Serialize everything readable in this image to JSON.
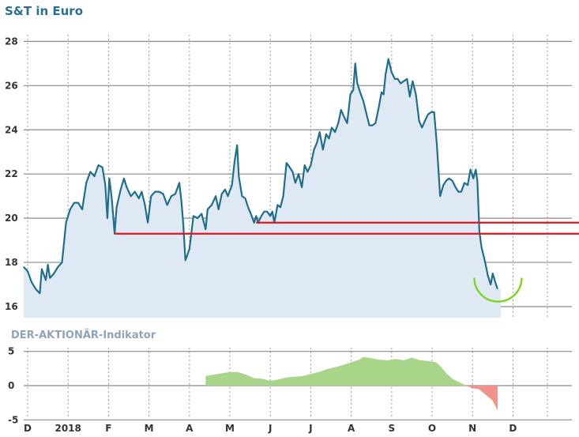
{
  "colors": {
    "title": "#2a6f8f",
    "subtitle": "#8fa3b8",
    "price_line": "#1f6e8c",
    "price_fill": "#dfe9f3",
    "support_line": "#e0161f",
    "arc": "#7ed321",
    "indicator_pos": "#a8d58a",
    "indicator_neg": "#f2928b",
    "grid": "#8a8a8a"
  },
  "chart_data": [
    {
      "type": "area",
      "title": "S&T in Euro",
      "xlabel": "",
      "ylabel": "",
      "ylim": [
        15.5,
        28.8
      ],
      "yticks": [
        16,
        18,
        20,
        22,
        24,
        26,
        28
      ],
      "xlim": [
        0,
        13
      ],
      "xticks": [
        {
          "x": 0,
          "label": "D"
        },
        {
          "x": 1,
          "label": "2018"
        },
        {
          "x": 2,
          "label": "F"
        },
        {
          "x": 3,
          "label": "M"
        },
        {
          "x": 4,
          "label": "A"
        },
        {
          "x": 5,
          "label": "M"
        },
        {
          "x": 6,
          "label": "J"
        },
        {
          "x": 7,
          "label": "J"
        },
        {
          "x": 8,
          "label": "A"
        },
        {
          "x": 9,
          "label": "S"
        },
        {
          "x": 10,
          "label": "O"
        },
        {
          "x": 11,
          "label": "N"
        },
        {
          "x": 12,
          "label": "D"
        }
      ],
      "x_end": 11.7,
      "grid": true,
      "series": [
        {
          "points": [
            [
              -0.1,
              17.8
            ],
            [
              0.0,
              17.6
            ],
            [
              0.1,
              17.1
            ],
            [
              0.2,
              16.8
            ],
            [
              0.3,
              16.6
            ],
            [
              0.35,
              17.7
            ],
            [
              0.45,
              17.2
            ],
            [
              0.5,
              17.9
            ],
            [
              0.55,
              17.3
            ],
            [
              0.65,
              17.5
            ],
            [
              0.75,
              17.8
            ],
            [
              0.85,
              18.0
            ],
            [
              0.95,
              19.8
            ],
            [
              1.05,
              20.4
            ],
            [
              1.15,
              20.7
            ],
            [
              1.25,
              20.7
            ],
            [
              1.35,
              20.4
            ],
            [
              1.45,
              21.6
            ],
            [
              1.55,
              22.1
            ],
            [
              1.65,
              21.9
            ],
            [
              1.75,
              22.4
            ],
            [
              1.85,
              22.3
            ],
            [
              1.92,
              21.5
            ],
            [
              1.97,
              20.0
            ],
            [
              2.02,
              21.8
            ],
            [
              2.08,
              20.9
            ],
            [
              2.15,
              19.3
            ],
            [
              2.2,
              20.5
            ],
            [
              2.3,
              21.3
            ],
            [
              2.38,
              21.8
            ],
            [
              2.45,
              21.4
            ],
            [
              2.55,
              21.0
            ],
            [
              2.65,
              21.2
            ],
            [
              2.75,
              20.9
            ],
            [
              2.82,
              21.2
            ],
            [
              2.9,
              20.6
            ],
            [
              2.97,
              19.8
            ],
            [
              3.05,
              21.0
            ],
            [
              3.15,
              21.2
            ],
            [
              3.25,
              21.2
            ],
            [
              3.35,
              21.1
            ],
            [
              3.45,
              20.6
            ],
            [
              3.55,
              21.0
            ],
            [
              3.65,
              21.1
            ],
            [
              3.75,
              21.6
            ],
            [
              3.8,
              20.8
            ],
            [
              3.85,
              19.7
            ],
            [
              3.9,
              18.1
            ],
            [
              4.0,
              18.6
            ],
            [
              4.1,
              20.1
            ],
            [
              4.2,
              20.0
            ],
            [
              4.3,
              20.2
            ],
            [
              4.4,
              19.5
            ],
            [
              4.45,
              20.4
            ],
            [
              4.55,
              20.6
            ],
            [
              4.65,
              21.0
            ],
            [
              4.72,
              20.4
            ],
            [
              4.8,
              21.1
            ],
            [
              4.88,
              21.3
            ],
            [
              4.95,
              21.0
            ],
            [
              5.05,
              21.5
            ],
            [
              5.12,
              22.6
            ],
            [
              5.18,
              23.3
            ],
            [
              5.22,
              21.9
            ],
            [
              5.3,
              21.0
            ],
            [
              5.38,
              20.9
            ],
            [
              5.45,
              20.5
            ],
            [
              5.52,
              20.2
            ],
            [
              5.6,
              19.8
            ],
            [
              5.65,
              20.1
            ],
            [
              5.7,
              19.8
            ],
            [
              5.78,
              20.1
            ],
            [
              5.85,
              20.3
            ],
            [
              5.92,
              20.3
            ],
            [
              6.0,
              20.1
            ],
            [
              6.05,
              20.3
            ],
            [
              6.1,
              19.8
            ],
            [
              6.18,
              20.6
            ],
            [
              6.25,
              20.5
            ],
            [
              6.32,
              21.0
            ],
            [
              6.4,
              22.5
            ],
            [
              6.48,
              22.3
            ],
            [
              6.55,
              22.1
            ],
            [
              6.62,
              21.6
            ],
            [
              6.7,
              22.0
            ],
            [
              6.78,
              21.4
            ],
            [
              6.85,
              22.4
            ],
            [
              6.92,
              22.1
            ],
            [
              7.0,
              22.4
            ],
            [
              7.08,
              23.1
            ],
            [
              7.15,
              23.4
            ],
            [
              7.22,
              23.9
            ],
            [
              7.3,
              23.1
            ],
            [
              7.38,
              23.8
            ],
            [
              7.45,
              23.6
            ],
            [
              7.52,
              24.1
            ],
            [
              7.6,
              23.9
            ],
            [
              7.68,
              24.3
            ],
            [
              7.75,
              24.9
            ],
            [
              7.82,
              24.6
            ],
            [
              7.9,
              24.3
            ],
            [
              7.98,
              25.6
            ],
            [
              8.05,
              25.8
            ],
            [
              8.1,
              27.0
            ],
            [
              8.15,
              26.1
            ],
            [
              8.22,
              25.7
            ],
            [
              8.3,
              25.3
            ],
            [
              8.38,
              24.7
            ],
            [
              8.45,
              24.2
            ],
            [
              8.52,
              24.2
            ],
            [
              8.6,
              24.3
            ],
            [
              8.68,
              25.0
            ],
            [
              8.75,
              25.7
            ],
            [
              8.8,
              25.6
            ],
            [
              8.85,
              26.5
            ],
            [
              8.92,
              27.2
            ],
            [
              9.0,
              26.6
            ],
            [
              9.08,
              26.3
            ],
            [
              9.15,
              26.3
            ],
            [
              9.22,
              26.1
            ],
            [
              9.3,
              26.2
            ],
            [
              9.38,
              26.3
            ],
            [
              9.45,
              25.5
            ],
            [
              9.52,
              26.2
            ],
            [
              9.6,
              25.6
            ],
            [
              9.68,
              24.4
            ],
            [
              9.75,
              24.1
            ],
            [
              9.82,
              24.4
            ],
            [
              9.9,
              24.7
            ],
            [
              9.98,
              24.8
            ],
            [
              10.05,
              24.8
            ],
            [
              10.12,
              23.3
            ],
            [
              10.2,
              21.0
            ],
            [
              10.28,
              21.5
            ],
            [
              10.35,
              21.7
            ],
            [
              10.42,
              21.8
            ],
            [
              10.5,
              21.7
            ],
            [
              10.58,
              21.4
            ],
            [
              10.65,
              21.2
            ],
            [
              10.72,
              21.2
            ],
            [
              10.8,
              21.6
            ],
            [
              10.88,
              21.5
            ],
            [
              10.95,
              22.2
            ],
            [
              11.02,
              21.8
            ],
            [
              11.08,
              22.2
            ],
            [
              11.12,
              21.7
            ],
            [
              11.17,
              19.4
            ],
            [
              11.22,
              18.7
            ],
            [
              11.3,
              18.1
            ],
            [
              11.38,
              17.4
            ],
            [
              11.45,
              17.0
            ],
            [
              11.5,
              17.5
            ],
            [
              11.58,
              17.0
            ],
            [
              11.62,
              16.8
            ]
          ]
        }
      ],
      "support_lines": [
        {
          "x_from": 2.15,
          "y": 19.3
        },
        {
          "x_from": 5.65,
          "y": 19.8
        }
      ]
    },
    {
      "type": "area",
      "title": "DER-AKTIONÄR-Indikator",
      "ylim": [
        -6.0,
        6.0
      ],
      "yticks": [
        5,
        0,
        -5
      ],
      "xlim": [
        0,
        13
      ],
      "grid": true,
      "series": [
        {
          "points": [
            [
              4.4,
              0.0
            ],
            [
              4.4,
              1.4
            ],
            [
              4.6,
              1.6
            ],
            [
              4.8,
              1.8
            ],
            [
              5.0,
              2.0
            ],
            [
              5.2,
              2.0
            ],
            [
              5.4,
              1.6
            ],
            [
              5.6,
              1.1
            ],
            [
              5.8,
              1.0
            ],
            [
              6.0,
              0.7
            ],
            [
              6.2,
              0.9
            ],
            [
              6.4,
              1.2
            ],
            [
              6.6,
              1.3
            ],
            [
              6.8,
              1.4
            ],
            [
              7.0,
              1.7
            ],
            [
              7.2,
              2.0
            ],
            [
              7.4,
              2.4
            ],
            [
              7.6,
              2.7
            ],
            [
              7.8,
              3.0
            ],
            [
              8.0,
              3.4
            ],
            [
              8.2,
              3.8
            ],
            [
              8.3,
              4.2
            ],
            [
              8.5,
              4.0
            ],
            [
              8.7,
              3.8
            ],
            [
              8.9,
              3.7
            ],
            [
              9.1,
              3.9
            ],
            [
              9.3,
              3.7
            ],
            [
              9.5,
              4.1
            ],
            [
              9.7,
              3.7
            ],
            [
              9.9,
              3.6
            ],
            [
              10.1,
              3.4
            ],
            [
              10.2,
              2.9
            ],
            [
              10.35,
              1.8
            ],
            [
              10.5,
              1.0
            ],
            [
              10.7,
              0.4
            ],
            [
              10.85,
              0.0
            ]
          ]
        },
        {
          "points": [
            [
              10.85,
              0.0
            ],
            [
              11.0,
              -0.4
            ],
            [
              11.15,
              -0.5
            ],
            [
              11.3,
              -1.2
            ],
            [
              11.5,
              -2.2
            ],
            [
              11.62,
              -3.6
            ],
            [
              11.62,
              0.0
            ]
          ]
        }
      ]
    }
  ]
}
